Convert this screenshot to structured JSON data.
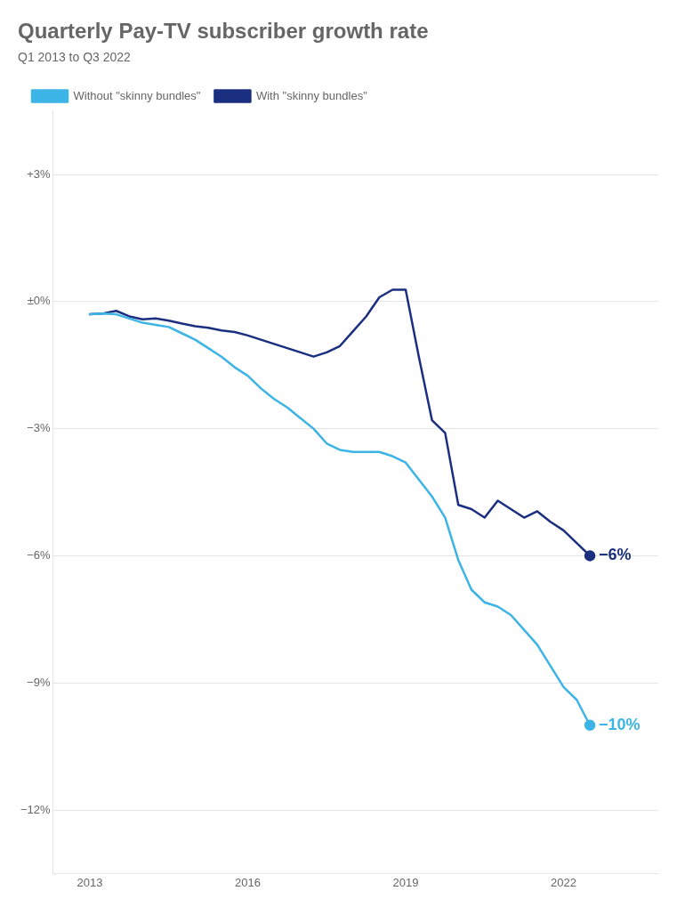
{
  "chart_data": {
    "type": "line",
    "title": "Quarterly Pay‑TV subscriber growth rate",
    "subtitle": "Q1 2013 to Q3 2022",
    "x": [
      2013.0,
      2013.25,
      2013.5,
      2013.75,
      2014.0,
      2014.25,
      2014.5,
      2014.75,
      2015.0,
      2015.25,
      2015.5,
      2015.75,
      2016.0,
      2016.25,
      2016.5,
      2016.75,
      2017.0,
      2017.25,
      2017.5,
      2017.75,
      2018.0,
      2018.25,
      2018.5,
      2018.75,
      2019.0,
      2019.25,
      2019.5,
      2019.75,
      2020.0,
      2020.25,
      2020.5,
      2020.75,
      2021.0,
      2021.25,
      2021.5,
      2021.75,
      2022.0,
      2022.25,
      2022.5
    ],
    "series": [
      {
        "name": "Without \"skinny bundles\"",
        "color": "#3cb4e5",
        "values": [
          -0.3,
          -0.28,
          -0.3,
          -0.4,
          -0.5,
          -0.55,
          -0.6,
          -0.75,
          -0.9,
          -1.1,
          -1.3,
          -1.55,
          -1.75,
          -2.05,
          -2.3,
          -2.5,
          -2.75,
          -3.0,
          -3.35,
          -3.5,
          -3.55,
          -3.55,
          -3.55,
          -3.65,
          -3.8,
          -4.2,
          -4.6,
          -5.1,
          -6.1,
          -6.8,
          -7.1,
          -7.2,
          -7.4,
          -7.75,
          -8.1,
          -8.6,
          -9.1,
          -9.4,
          -10.0
        ]
      },
      {
        "name": "With \"skinny bundles\"",
        "color": "#1a2f80",
        "values": [
          -0.3,
          -0.28,
          -0.22,
          -0.35,
          -0.42,
          -0.4,
          -0.45,
          -0.52,
          -0.58,
          -0.62,
          -0.68,
          -0.72,
          -0.8,
          -0.9,
          -1.0,
          -1.1,
          -1.2,
          -1.3,
          -1.2,
          -1.05,
          -0.7,
          -0.35,
          0.1,
          0.28,
          0.28,
          -1.3,
          -2.8,
          -3.1,
          -4.8,
          -4.9,
          -5.1,
          -4.7,
          -4.9,
          -5.1,
          -4.95,
          -5.2,
          -5.4,
          -5.7,
          -6.0
        ]
      }
    ],
    "xlim": [
      2012.3,
      2023.8
    ],
    "xticks": [
      2013,
      2016,
      2019,
      2022
    ],
    "ylim": [
      -13.5,
      4.5
    ],
    "yticks": [
      {
        "value": 3,
        "label": "+3%"
      },
      {
        "value": 0,
        "label": "±0%"
      },
      {
        "value": -3,
        "label": "−3%"
      },
      {
        "value": -6,
        "label": "−6%"
      },
      {
        "value": -9,
        "label": "−9%"
      },
      {
        "value": -12,
        "label": "−12%"
      }
    ],
    "grid": true,
    "legend": "top",
    "annotations": [
      {
        "text": "−10%",
        "x": 2022.5,
        "y": -10.0,
        "color": "#3cb4e5"
      },
      {
        "text": "−6%",
        "x": 2022.5,
        "y": -6.0,
        "color": "#1a2f80"
      }
    ]
  }
}
